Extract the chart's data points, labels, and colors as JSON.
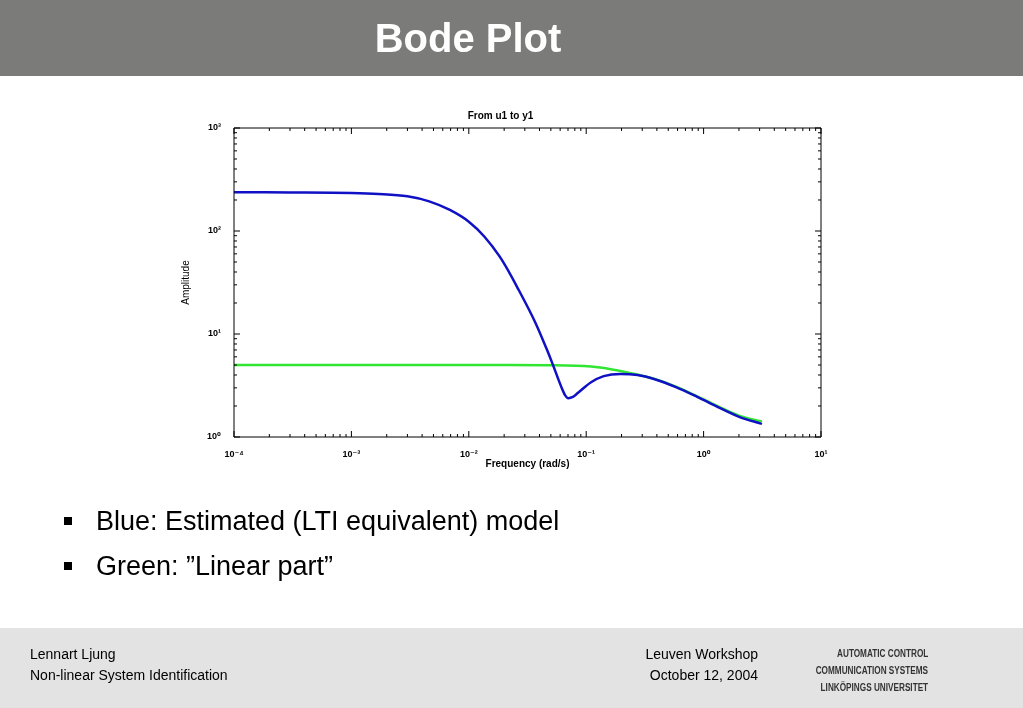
{
  "chart_data": {
    "type": "line",
    "title": "Bode Plot",
    "subtitle": "From u1 to y1",
    "xlabel": "Frequency (rad/s)",
    "ylabel": "Amplitude",
    "log": "xy",
    "xlim": [
      0.0001,
      10
    ],
    "ylim": [
      1,
      1000
    ],
    "xticks": [
      {
        "value": 0.0001,
        "label": "10⁻⁴"
      },
      {
        "value": 0.0002,
        "label": null
      },
      {
        "value": 0.0003,
        "label": null
      },
      {
        "value": 0.0004,
        "label": null
      },
      {
        "value": 0.0005,
        "label": null
      },
      {
        "value": 0.0006,
        "label": null
      },
      {
        "value": 0.0007,
        "label": null
      },
      {
        "value": 0.0008,
        "label": null
      },
      {
        "value": 0.0009,
        "label": null
      },
      {
        "value": 0.001,
        "label": "10⁻³"
      },
      {
        "value": 0.002,
        "label": null
      },
      {
        "value": 0.003,
        "label": null
      },
      {
        "value": 0.004,
        "label": null
      },
      {
        "value": 0.005,
        "label": null
      },
      {
        "value": 0.006,
        "label": null
      },
      {
        "value": 0.007,
        "label": null
      },
      {
        "value": 0.008,
        "label": null
      },
      {
        "value": 0.009,
        "label": null
      },
      {
        "value": 0.01,
        "label": "10⁻²"
      },
      {
        "value": 0.02,
        "label": null
      },
      {
        "value": 0.03,
        "label": null
      },
      {
        "value": 0.04,
        "label": null
      },
      {
        "value": 0.05,
        "label": null
      },
      {
        "value": 0.06,
        "label": null
      },
      {
        "value": 0.07,
        "label": null
      },
      {
        "value": 0.08,
        "label": null
      },
      {
        "value": 0.09,
        "label": null
      },
      {
        "value": 0.1,
        "label": "10⁻¹"
      },
      {
        "value": 0.2,
        "label": null
      },
      {
        "value": 0.3,
        "label": null
      },
      {
        "value": 0.4,
        "label": null
      },
      {
        "value": 0.5,
        "label": null
      },
      {
        "value": 0.6,
        "label": null
      },
      {
        "value": 0.7,
        "label": null
      },
      {
        "value": 0.8,
        "label": null
      },
      {
        "value": 0.9,
        "label": null
      },
      {
        "value": 1,
        "label": "10⁰"
      },
      {
        "value": 2,
        "label": null
      },
      {
        "value": 3,
        "label": null
      },
      {
        "value": 4,
        "label": null
      },
      {
        "value": 5,
        "label": null
      },
      {
        "value": 6,
        "label": null
      },
      {
        "value": 7,
        "label": null
      },
      {
        "value": 8,
        "label": null
      },
      {
        "value": 9,
        "label": null
      },
      {
        "value": 10,
        "label": "10¹"
      }
    ],
    "yticks": [
      {
        "value": 1,
        "label": "10⁰"
      },
      {
        "value": 2,
        "label": null
      },
      {
        "value": 3,
        "label": null
      },
      {
        "value": 4,
        "label": null
      },
      {
        "value": 5,
        "label": null
      },
      {
        "value": 6,
        "label": null
      },
      {
        "value": 7,
        "label": null
      },
      {
        "value": 8,
        "label": null
      },
      {
        "value": 9,
        "label": null
      },
      {
        "value": 10,
        "label": "10¹"
      },
      {
        "value": 20,
        "label": null
      },
      {
        "value": 30,
        "label": null
      },
      {
        "value": 40,
        "label": null
      },
      {
        "value": 50,
        "label": null
      },
      {
        "value": 60,
        "label": null
      },
      {
        "value": 70,
        "label": null
      },
      {
        "value": 80,
        "label": null
      },
      {
        "value": 90,
        "label": null
      },
      {
        "value": 100,
        "label": "10²"
      },
      {
        "value": 200,
        "label": null
      },
      {
        "value": 300,
        "label": null
      },
      {
        "value": 400,
        "label": null
      },
      {
        "value": 500,
        "label": null
      },
      {
        "value": 600,
        "label": null
      },
      {
        "value": 700,
        "label": null
      },
      {
        "value": 800,
        "label": null
      },
      {
        "value": 900,
        "label": null
      },
      {
        "value": 1000,
        "label": "10³"
      }
    ],
    "series": [
      {
        "color": "#1010c4",
        "x": [
          0.0001,
          0.0003,
          0.001,
          0.0017,
          0.003,
          0.0046,
          0.0069,
          0.01,
          0.0136,
          0.019,
          0.0265,
          0.037,
          0.0457,
          0.0518,
          0.0611,
          0.066,
          0.0705,
          0.077,
          0.0853,
          0.11,
          0.141,
          0.196,
          0.274,
          0.383,
          0.581,
          0.883,
          1.34,
          2.03,
          3.08
        ],
        "values": [
          238,
          237,
          234,
          229,
          217,
          194,
          160,
          123,
          88,
          53,
          27,
          12.8,
          7.3,
          5.1,
          3.1,
          2.55,
          2.38,
          2.45,
          2.69,
          3.4,
          3.9,
          4.1,
          4,
          3.64,
          3.05,
          2.45,
          1.94,
          1.56,
          1.35
        ]
      },
      {
        "color": "#30e630",
        "x": [
          0.0001,
          0.001,
          0.01,
          0.05,
          0.11,
          0.166,
          0.252,
          0.383,
          0.581,
          0.883,
          1.34,
          2.03,
          3.08
        ],
        "values": [
          5,
          5,
          5,
          4.97,
          4.83,
          4.53,
          4.12,
          3.67,
          3.08,
          2.48,
          1.97,
          1.6,
          1.42
        ]
      }
    ],
    "annotations": [
      "Blue: Estimated (LTI equivalent) model",
      "Green: ”Linear part”",
      "Lennart Ljung",
      "Non-linear System Identification",
      "Leuven Workshop",
      "October 12, 2004",
      "AUTOMATIC CONTROL",
      "COMMUNICATION SYSTEMS",
      "LINKÖPINGS UNIVERSITET"
    ]
  }
}
